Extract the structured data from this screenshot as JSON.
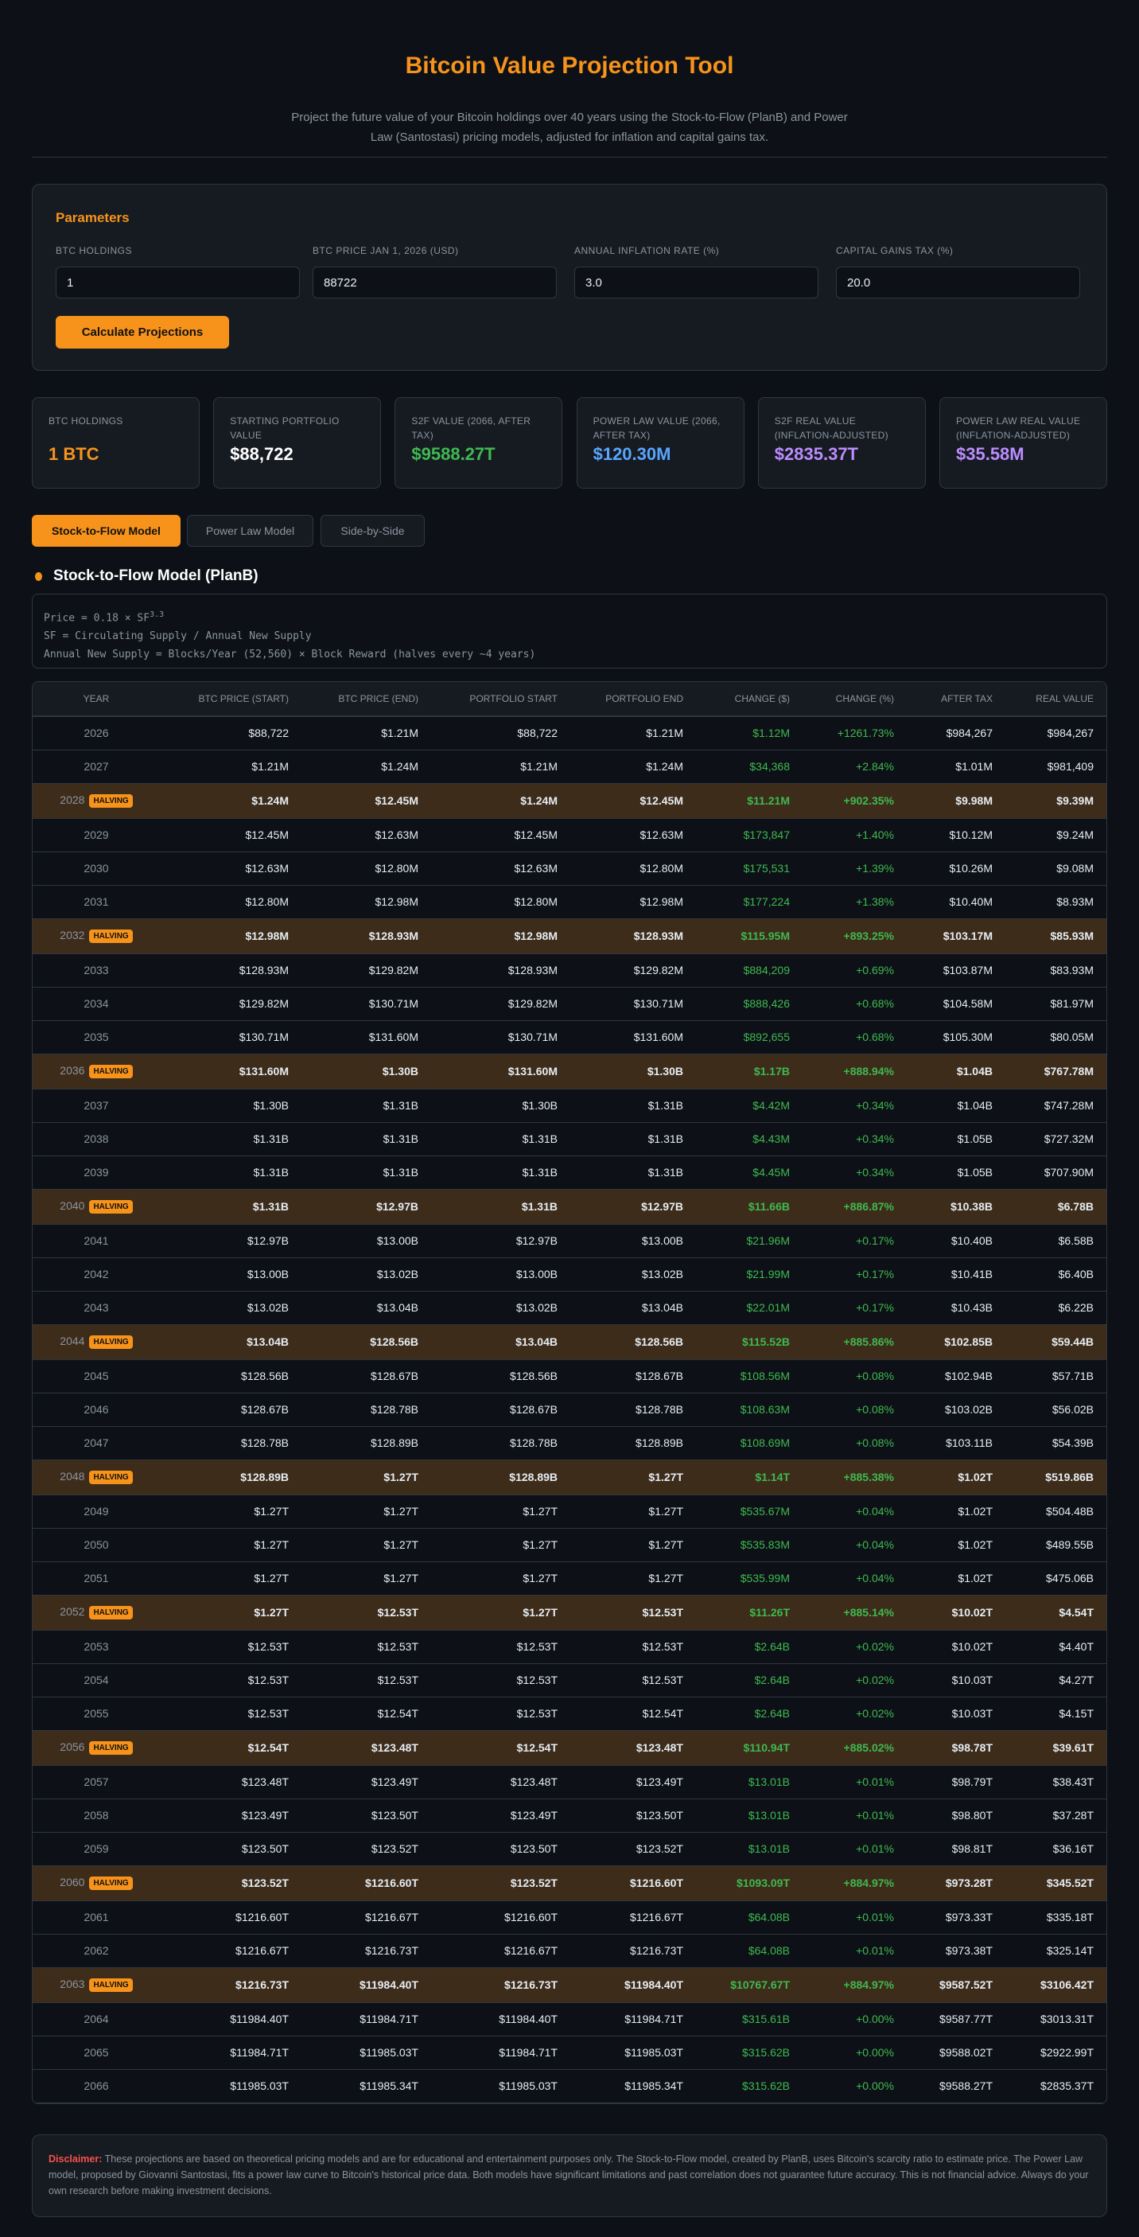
{
  "header": {
    "title": "Bitcoin Value Projection Tool",
    "subtitle": "Project the future value of your Bitcoin holdings over 40 years using the Stock-to-Flow (PlanB) and Power Law (Santostasi) pricing models, adjusted for inflation and capital gains tax."
  },
  "parameters": {
    "title": "Parameters",
    "fields": [
      {
        "label": "BTC Holdings",
        "value": "1"
      },
      {
        "label": "BTC Price Jan 1, 2026 (USD)",
        "value": "88722"
      },
      {
        "label": "Annual Inflation Rate (%)",
        "value": "3.0"
      },
      {
        "label": "Capital Gains Tax (%)",
        "value": "20.0"
      }
    ],
    "button": "Calculate Projections"
  },
  "cards": [
    {
      "label": "BTC Holdings",
      "value": "1 BTC",
      "color": "#f7931a"
    },
    {
      "label": "Starting Portfolio Value",
      "value": "$88,722",
      "color": "#ffffff"
    },
    {
      "label": "S2F Value (2066, After Tax)",
      "value": "$9588.27T",
      "color": "#3fb950"
    },
    {
      "label": "Power Law Value (2066, After Tax)",
      "value": "$120.30M",
      "color": "#58a6ff"
    },
    {
      "label": "S2F Real Value (Inflation-Adjusted)",
      "value": "$2835.37T",
      "color": "#bc8cff"
    },
    {
      "label": "Power Law Real Value (Inflation-Adjusted)",
      "value": "$35.58M",
      "color": "#bc8cff"
    }
  ],
  "tabs": [
    "Stock-to-Flow Model",
    "Power Law Model",
    "Side-by-Side"
  ],
  "section": {
    "title": "Stock-to-Flow Model (PlanB)",
    "formula1": "Price = 0.18 × SF",
    "formula1_exp": "3.3",
    "formula2": "SF = Circulating Supply / Annual New Supply",
    "formula3": "Annual New Supply = Blocks/Year (52,560) × Block Reward (halves every ~4 years)"
  },
  "table": {
    "badge": "HALVING",
    "headers": [
      "Year",
      "BTC Price (Start)",
      "BTC Price (End)",
      "Portfolio Start",
      "Portfolio End",
      "Change ($)",
      "Change (%)",
      "After Tax",
      "Real Value"
    ],
    "rows": [
      [
        "2026",
        0,
        "$88,722",
        "$1.21M",
        "$88,722",
        "$1.21M",
        "$1.12M",
        "+1261.73%",
        "$984,267",
        "$984,267"
      ],
      [
        "2027",
        0,
        "$1.21M",
        "$1.24M",
        "$1.21M",
        "$1.24M",
        "$34,368",
        "+2.84%",
        "$1.01M",
        "$981,409"
      ],
      [
        "2028",
        1,
        "$1.24M",
        "$12.45M",
        "$1.24M",
        "$12.45M",
        "$11.21M",
        "+902.35%",
        "$9.98M",
        "$9.39M"
      ],
      [
        "2029",
        0,
        "$12.45M",
        "$12.63M",
        "$12.45M",
        "$12.63M",
        "$173,847",
        "+1.40%",
        "$10.12M",
        "$9.24M"
      ],
      [
        "2030",
        0,
        "$12.63M",
        "$12.80M",
        "$12.63M",
        "$12.80M",
        "$175,531",
        "+1.39%",
        "$10.26M",
        "$9.08M"
      ],
      [
        "2031",
        0,
        "$12.80M",
        "$12.98M",
        "$12.80M",
        "$12.98M",
        "$177,224",
        "+1.38%",
        "$10.40M",
        "$8.93M"
      ],
      [
        "2032",
        1,
        "$12.98M",
        "$128.93M",
        "$12.98M",
        "$128.93M",
        "$115.95M",
        "+893.25%",
        "$103.17M",
        "$85.93M"
      ],
      [
        "2033",
        0,
        "$128.93M",
        "$129.82M",
        "$128.93M",
        "$129.82M",
        "$884,209",
        "+0.69%",
        "$103.87M",
        "$83.93M"
      ],
      [
        "2034",
        0,
        "$129.82M",
        "$130.71M",
        "$129.82M",
        "$130.71M",
        "$888,426",
        "+0.68%",
        "$104.58M",
        "$81.97M"
      ],
      [
        "2035",
        0,
        "$130.71M",
        "$131.60M",
        "$130.71M",
        "$131.60M",
        "$892,655",
        "+0.68%",
        "$105.30M",
        "$80.05M"
      ],
      [
        "2036",
        1,
        "$131.60M",
        "$1.30B",
        "$131.60M",
        "$1.30B",
        "$1.17B",
        "+888.94%",
        "$1.04B",
        "$767.78M"
      ],
      [
        "2037",
        0,
        "$1.30B",
        "$1.31B",
        "$1.30B",
        "$1.31B",
        "$4.42M",
        "+0.34%",
        "$1.04B",
        "$747.28M"
      ],
      [
        "2038",
        0,
        "$1.31B",
        "$1.31B",
        "$1.31B",
        "$1.31B",
        "$4.43M",
        "+0.34%",
        "$1.05B",
        "$727.32M"
      ],
      [
        "2039",
        0,
        "$1.31B",
        "$1.31B",
        "$1.31B",
        "$1.31B",
        "$4.45M",
        "+0.34%",
        "$1.05B",
        "$707.90M"
      ],
      [
        "2040",
        1,
        "$1.31B",
        "$12.97B",
        "$1.31B",
        "$12.97B",
        "$11.66B",
        "+886.87%",
        "$10.38B",
        "$6.78B"
      ],
      [
        "2041",
        0,
        "$12.97B",
        "$13.00B",
        "$12.97B",
        "$13.00B",
        "$21.96M",
        "+0.17%",
        "$10.40B",
        "$6.58B"
      ],
      [
        "2042",
        0,
        "$13.00B",
        "$13.02B",
        "$13.00B",
        "$13.02B",
        "$21.99M",
        "+0.17%",
        "$10.41B",
        "$6.40B"
      ],
      [
        "2043",
        0,
        "$13.02B",
        "$13.04B",
        "$13.02B",
        "$13.04B",
        "$22.01M",
        "+0.17%",
        "$10.43B",
        "$6.22B"
      ],
      [
        "2044",
        1,
        "$13.04B",
        "$128.56B",
        "$13.04B",
        "$128.56B",
        "$115.52B",
        "+885.86%",
        "$102.85B",
        "$59.44B"
      ],
      [
        "2045",
        0,
        "$128.56B",
        "$128.67B",
        "$128.56B",
        "$128.67B",
        "$108.56M",
        "+0.08%",
        "$102.94B",
        "$57.71B"
      ],
      [
        "2046",
        0,
        "$128.67B",
        "$128.78B",
        "$128.67B",
        "$128.78B",
        "$108.63M",
        "+0.08%",
        "$103.02B",
        "$56.02B"
      ],
      [
        "2047",
        0,
        "$128.78B",
        "$128.89B",
        "$128.78B",
        "$128.89B",
        "$108.69M",
        "+0.08%",
        "$103.11B",
        "$54.39B"
      ],
      [
        "2048",
        1,
        "$128.89B",
        "$1.27T",
        "$128.89B",
        "$1.27T",
        "$1.14T",
        "+885.38%",
        "$1.02T",
        "$519.86B"
      ],
      [
        "2049",
        0,
        "$1.27T",
        "$1.27T",
        "$1.27T",
        "$1.27T",
        "$535.67M",
        "+0.04%",
        "$1.02T",
        "$504.48B"
      ],
      [
        "2050",
        0,
        "$1.27T",
        "$1.27T",
        "$1.27T",
        "$1.27T",
        "$535.83M",
        "+0.04%",
        "$1.02T",
        "$489.55B"
      ],
      [
        "2051",
        0,
        "$1.27T",
        "$1.27T",
        "$1.27T",
        "$1.27T",
        "$535.99M",
        "+0.04%",
        "$1.02T",
        "$475.06B"
      ],
      [
        "2052",
        1,
        "$1.27T",
        "$12.53T",
        "$1.27T",
        "$12.53T",
        "$11.26T",
        "+885.14%",
        "$10.02T",
        "$4.54T"
      ],
      [
        "2053",
        0,
        "$12.53T",
        "$12.53T",
        "$12.53T",
        "$12.53T",
        "$2.64B",
        "+0.02%",
        "$10.02T",
        "$4.40T"
      ],
      [
        "2054",
        0,
        "$12.53T",
        "$12.53T",
        "$12.53T",
        "$12.53T",
        "$2.64B",
        "+0.02%",
        "$10.03T",
        "$4.27T"
      ],
      [
        "2055",
        0,
        "$12.53T",
        "$12.54T",
        "$12.53T",
        "$12.54T",
        "$2.64B",
        "+0.02%",
        "$10.03T",
        "$4.15T"
      ],
      [
        "2056",
        1,
        "$12.54T",
        "$123.48T",
        "$12.54T",
        "$123.48T",
        "$110.94T",
        "+885.02%",
        "$98.78T",
        "$39.61T"
      ],
      [
        "2057",
        0,
        "$123.48T",
        "$123.49T",
        "$123.48T",
        "$123.49T",
        "$13.01B",
        "+0.01%",
        "$98.79T",
        "$38.43T"
      ],
      [
        "2058",
        0,
        "$123.49T",
        "$123.50T",
        "$123.49T",
        "$123.50T",
        "$13.01B",
        "+0.01%",
        "$98.80T",
        "$37.28T"
      ],
      [
        "2059",
        0,
        "$123.50T",
        "$123.52T",
        "$123.50T",
        "$123.52T",
        "$13.01B",
        "+0.01%",
        "$98.81T",
        "$36.16T"
      ],
      [
        "2060",
        1,
        "$123.52T",
        "$1216.60T",
        "$123.52T",
        "$1216.60T",
        "$1093.09T",
        "+884.97%",
        "$973.28T",
        "$345.52T"
      ],
      [
        "2061",
        0,
        "$1216.60T",
        "$1216.67T",
        "$1216.60T",
        "$1216.67T",
        "$64.08B",
        "+0.01%",
        "$973.33T",
        "$335.18T"
      ],
      [
        "2062",
        0,
        "$1216.67T",
        "$1216.73T",
        "$1216.67T",
        "$1216.73T",
        "$64.08B",
        "+0.01%",
        "$973.38T",
        "$325.14T"
      ],
      [
        "2063",
        1,
        "$1216.73T",
        "$11984.40T",
        "$1216.73T",
        "$11984.40T",
        "$10767.67T",
        "+884.97%",
        "$9587.52T",
        "$3106.42T"
      ],
      [
        "2064",
        0,
        "$11984.40T",
        "$11984.71T",
        "$11984.40T",
        "$11984.71T",
        "$315.61B",
        "+0.00%",
        "$9587.77T",
        "$3013.31T"
      ],
      [
        "2065",
        0,
        "$11984.71T",
        "$11985.03T",
        "$11984.71T",
        "$11985.03T",
        "$315.62B",
        "+0.00%",
        "$9588.02T",
        "$2922.99T"
      ],
      [
        "2066",
        0,
        "$11985.03T",
        "$11985.34T",
        "$11985.03T",
        "$11985.34T",
        "$315.62B",
        "+0.00%",
        "$9588.27T",
        "$2835.37T"
      ]
    ]
  },
  "disclaimer": {
    "label": "Disclaimer:",
    "text": " These projections are based on theoretical pricing models and are for educational and entertainment purposes only. The Stock-to-Flow model, created by PlanB, uses Bitcoin's scarcity ratio to estimate price. The Power Law model, proposed by Giovanni Santostasi, fits a power law curve to Bitcoin's historical price data. Both models have significant limitations and past correlation does not guarantee future accuracy. This is not financial advice. Always do your own research before making investment decisions."
  }
}
